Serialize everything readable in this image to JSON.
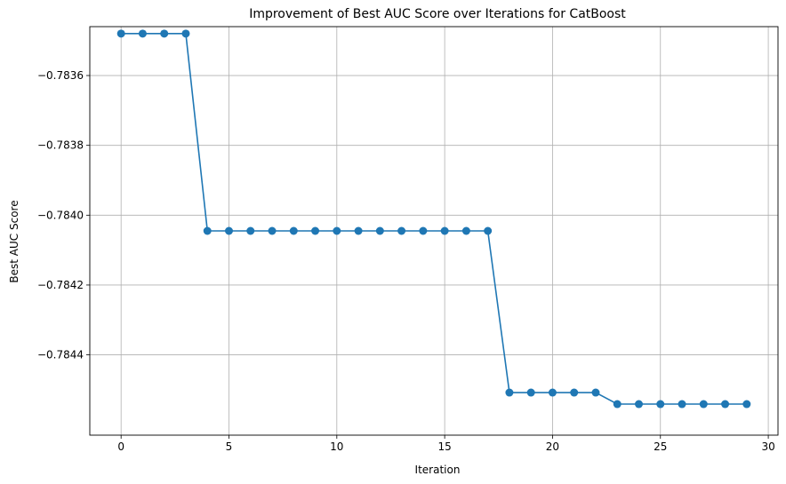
{
  "chart_data": {
    "type": "line",
    "title": "Improvement of Best AUC Score over Iterations for CatBoost",
    "xlabel": "Iteration",
    "ylabel": "Best AUC Score",
    "xlim": [
      -1.45,
      30.45
    ],
    "ylim": [
      -0.78463,
      -0.78346
    ],
    "xticks": [
      0,
      5,
      10,
      15,
      20,
      25,
      30
    ],
    "xtick_labels": [
      "0",
      "5",
      "10",
      "15",
      "20",
      "25",
      "30"
    ],
    "yticks": [
      -0.7836,
      -0.7838,
      -0.784,
      -0.7842,
      -0.7844
    ],
    "ytick_labels": [
      "−0.7836",
      "−0.7838",
      "−0.7840",
      "−0.7842",
      "−0.7844"
    ],
    "grid": true,
    "line_color": "#1f77b4",
    "marker": "circle",
    "x": [
      0,
      1,
      2,
      3,
      4,
      5,
      6,
      7,
      8,
      9,
      10,
      11,
      12,
      13,
      14,
      15,
      16,
      17,
      18,
      19,
      20,
      21,
      22,
      23,
      24,
      25,
      26,
      27,
      28,
      29
    ],
    "y": [
      -0.78348,
      -0.78348,
      -0.78348,
      -0.78348,
      -0.784045,
      -0.784045,
      -0.784045,
      -0.784045,
      -0.784045,
      -0.784045,
      -0.784045,
      -0.784045,
      -0.784045,
      -0.784045,
      -0.784045,
      -0.784045,
      -0.784045,
      -0.784045,
      -0.784508,
      -0.784508,
      -0.784508,
      -0.784508,
      -0.784508,
      -0.784541,
      -0.784541,
      -0.784541,
      -0.784541,
      -0.784541,
      -0.784541,
      -0.784541
    ]
  }
}
